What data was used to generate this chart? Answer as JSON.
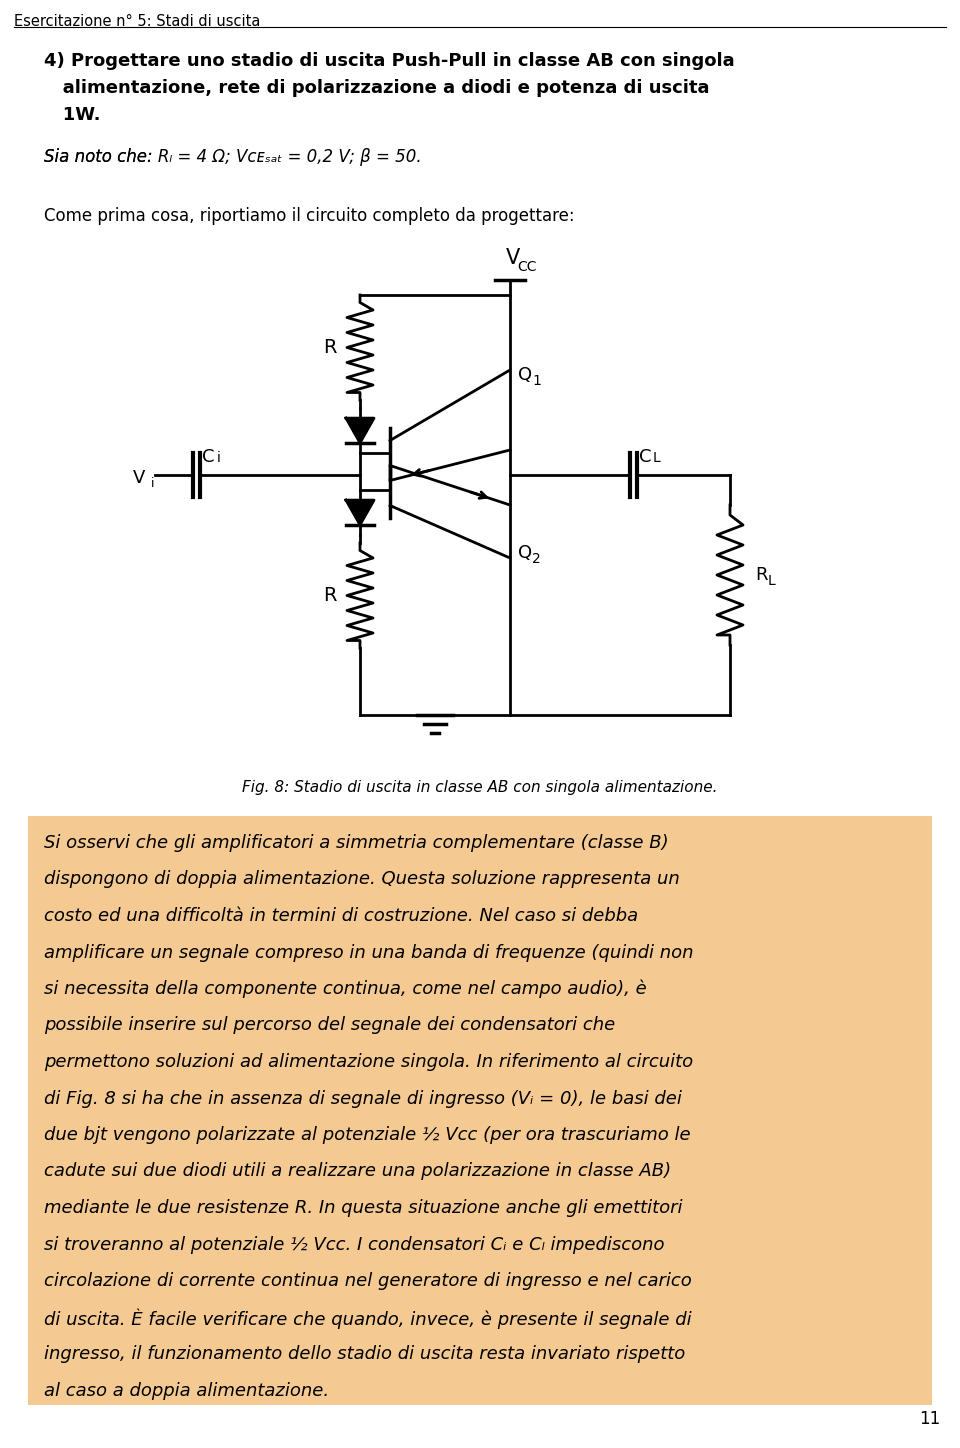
{
  "page_bg": "#ffffff",
  "header_text": "Esercitazione n° 5: Stadi di uscita",
  "highlight_bg": "#f5c992",
  "page_number": "11",
  "title_line1": "4) Progettare uno stadio di uscita Push-Pull in classe AB con singola",
  "title_line2": "   alimentazione, rete di polarizzazione a diodi e potenza di uscita",
  "title_line3": "   1W.",
  "param_line": "Sia noto che: Rₗ = 4 Ω; Vᴄᴇₛₐₜ = 0,2 V; β = 50.",
  "normal_line": "Come prima cosa, riportiamo il circuito completo da progettare:",
  "fig_caption": "Fig. 8: Stadio di uscita in classe AB con singola alimentazione.",
  "highlight_lines": [
    "Si osservi che gli amplificatori a simmetria complementare (classe B)",
    "dispongono di doppia alimentazione. Questa soluzione rappresenta un",
    "costo ed una difficoltà in termini di costruzione. Nel caso si debba",
    "amplificare un segnale compreso in una banda di frequenze (quindi non",
    "si necessita della componente continua, come nel campo audio), è",
    "possibile inserire sul percorso del segnale dei condensatori che",
    "permettono soluzioni ad alimentazione singola. In riferimento al circuito",
    "di Fig. 8 si ha che in assenza di segnale di ingresso (Vᵢ = 0), le basi dei",
    "due bjt vengono polarizzate al potenziale ½ Vᴄᴄ (per ora trascuriamo le",
    "cadute sui due diodi utili a realizzare una polarizzazione in classe AB)",
    "mediante le due resistenze R. In questa situazione anche gli emettitori",
    "si troveranno al potenziale ½ Vᴄᴄ. I condensatori Cᵢ e Cₗ impediscono",
    "circolazione di corrente continua nel generatore di ingresso e nel carico",
    "di uscita. È facile verificare che quando, invece, è presente il segnale di",
    "ingresso, il funzionamento dello stadio di uscita resta invariato rispetto",
    "al caso a doppia alimentazione."
  ]
}
